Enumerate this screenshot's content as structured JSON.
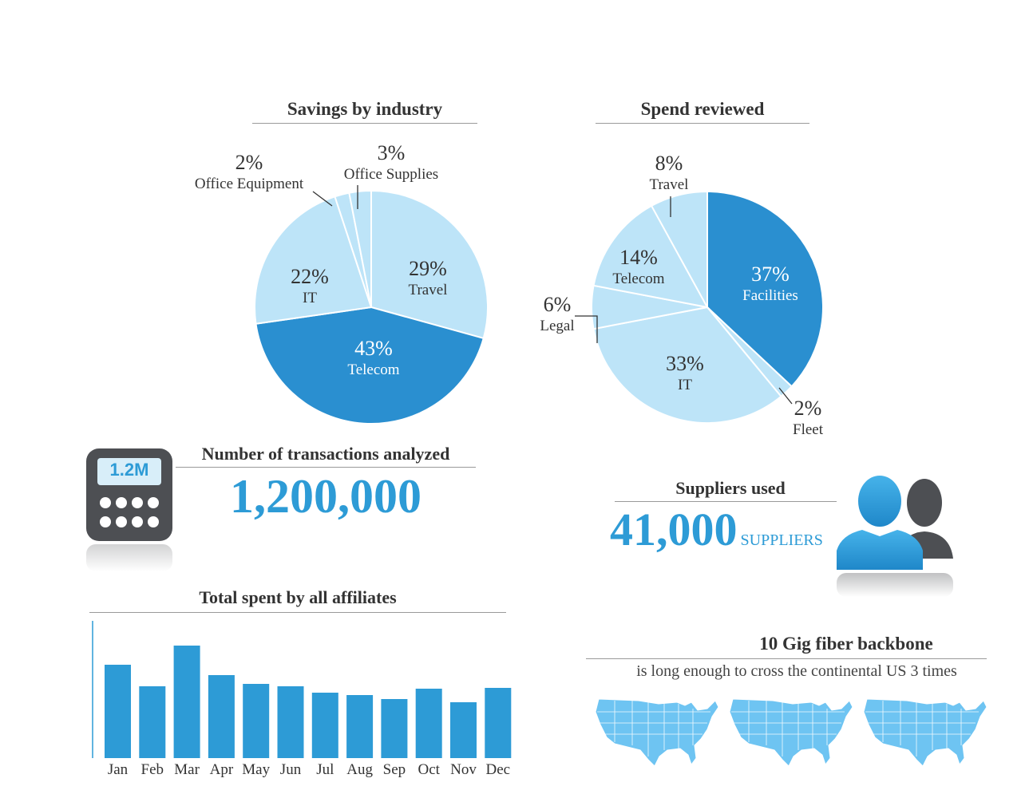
{
  "charts": {
    "savings": {
      "title": "Savings by industry"
    },
    "spend": {
      "title": "Spend reviewed"
    }
  },
  "chart_data": [
    {
      "type": "pie",
      "title": "Savings by industry",
      "labels": [
        "Travel",
        "Telecom",
        "IT",
        "Office Equipment",
        "Office Supplies"
      ],
      "values": [
        29,
        43,
        22,
        2,
        3
      ],
      "value_labels": [
        "29%",
        "43%",
        "22%",
        "2%",
        "3%"
      ],
      "colors": [
        "#bde4f8",
        "#2a8fd0",
        "#bde4f8",
        "#bde4f8",
        "#bde4f8"
      ]
    },
    {
      "type": "pie",
      "title": "Spend reviewed",
      "labels": [
        "Facilities",
        "Fleet",
        "IT",
        "Legal",
        "Telecom",
        "Travel"
      ],
      "values": [
        37,
        2,
        33,
        6,
        14,
        8
      ],
      "value_labels": [
        "37%",
        "2%",
        "33%",
        "6%",
        "14%",
        "8%"
      ],
      "colors": [
        "#2a8fd0",
        "#bde4f8",
        "#bde4f8",
        "#bde4f8",
        "#bde4f8",
        "#bde4f8"
      ]
    },
    {
      "type": "bar",
      "title": "Total spent by all affiliates",
      "categories": [
        "Jan",
        "Feb",
        "Mar",
        "Apr",
        "May",
        "Jun",
        "Jul",
        "Aug",
        "Sep",
        "Oct",
        "Nov",
        "Dec"
      ],
      "values": [
        117,
        90,
        141,
        104,
        93,
        90,
        82,
        79,
        74,
        87,
        70,
        88
      ],
      "ylim": [
        0,
        150
      ],
      "color": "#2d9bd6"
    }
  ],
  "transactions": {
    "icon_label": "1.2M",
    "title": "Number of transactions analyzed",
    "value": "1,200,000"
  },
  "suppliers": {
    "title": "Suppliers used",
    "value": "41,000",
    "unit": "SUPPLIERS"
  },
  "fiber": {
    "title": "10 Gig fiber backbone",
    "subtitle": "is long enough to cross the continental US 3 times"
  },
  "colors": {
    "accent": "#2d9bd6",
    "dark_blue": "#2a8fd0",
    "light_blue": "#bde4f8",
    "map_blue": "#6ec4f2",
    "icon_gray": "#4d4f53"
  }
}
